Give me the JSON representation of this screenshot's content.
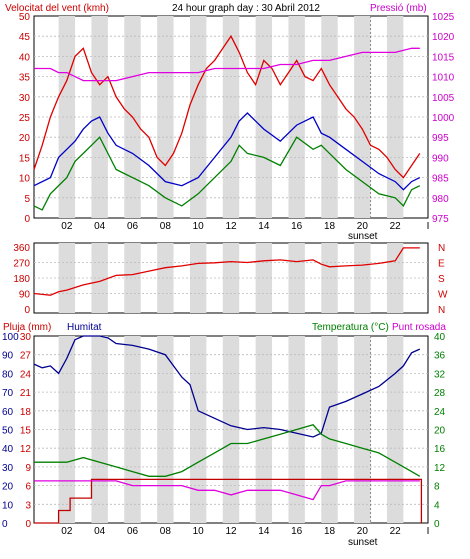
{
  "header": {
    "wind_label": "Velocitat del vent (kmh)",
    "title": "24 hour graph day : 30 Abril 2012",
    "pressure_label": "Pressió (mb)"
  },
  "colors": {
    "wind_gust": "#e00000",
    "wind_avg": "#0000c8",
    "wind_low": "#008000",
    "pressure": "#e000e0",
    "direction": "#e00000",
    "humidity": "#000090",
    "rain": "#c00000",
    "temperature": "#008000",
    "dewpoint": "#e000e0",
    "band": "#dcdcdc",
    "axis_left": "#cc0000",
    "axis_right_top": "#cc00cc",
    "axis_right_bottom": "#008000"
  },
  "x_ticks": [
    "02",
    "04",
    "06",
    "08",
    "10",
    "12",
    "14",
    "16",
    "18",
    "20",
    "22"
  ],
  "sunset_label": "sunset",
  "end_tick": "I",
  "chart_data": [
    {
      "type": "line",
      "id": "wind_pressure",
      "x_unit": "hour",
      "ylim_left": [
        0,
        50
      ],
      "yticks_left": [
        0,
        5,
        10,
        15,
        20,
        25,
        30,
        35,
        40,
        45,
        50
      ],
      "ylim_right": [
        975,
        1025
      ],
      "yticks_right": [
        975,
        980,
        985,
        990,
        995,
        1000,
        1005,
        1010,
        1015,
        1020,
        1025
      ],
      "grid": true,
      "sunset_hour": 20.5,
      "series": [
        {
          "axis": "left",
          "color_key": "wind_gust",
          "x": [
            0,
            0.5,
            1,
            1.5,
            2,
            2.5,
            3,
            3.5,
            4,
            4.5,
            5,
            5.5,
            6,
            6.5,
            7,
            7.5,
            8,
            8.5,
            9,
            9.5,
            10,
            10.5,
            11,
            11.5,
            12,
            12.5,
            13,
            13.5,
            14,
            14.5,
            15,
            15.5,
            16,
            16.5,
            17,
            17.5,
            18,
            18.5,
            19,
            19.5,
            20,
            20.5,
            21,
            21.5,
            22,
            22.5,
            23,
            23.5
          ],
          "y": [
            12,
            18,
            25,
            30,
            34,
            40,
            42,
            36,
            33,
            35,
            30,
            27,
            25,
            22,
            20,
            15,
            13,
            16,
            21,
            28,
            33,
            37,
            39,
            42,
            45,
            41,
            36,
            33,
            39,
            37,
            33,
            36,
            39,
            35,
            34,
            37,
            33,
            30,
            27,
            25,
            22,
            18,
            17,
            15,
            12,
            10,
            13,
            16
          ]
        },
        {
          "axis": "left",
          "color_key": "wind_avg",
          "x": [
            0,
            1,
            1.5,
            2,
            2.5,
            3,
            3.5,
            4,
            4.5,
            5,
            6,
            7,
            8,
            9,
            10,
            11,
            12,
            12.5,
            13,
            14,
            15,
            16,
            17,
            17.5,
            18,
            19,
            20,
            21,
            22,
            22.5,
            23,
            23.5
          ],
          "y": [
            8,
            10,
            15,
            17,
            19,
            22,
            24,
            25,
            21,
            18,
            16,
            13,
            9,
            8,
            10,
            15,
            20,
            24,
            26,
            22,
            19,
            23,
            25,
            21,
            20,
            17,
            14,
            11,
            9,
            7,
            9,
            10
          ]
        },
        {
          "axis": "left",
          "color_key": "wind_low",
          "x": [
            0,
            0.5,
            1,
            2,
            2.5,
            3,
            3.5,
            4,
            5,
            6,
            7,
            8,
            8.5,
            9,
            10,
            11,
            12,
            12.5,
            13,
            14,
            15,
            16,
            17,
            17.5,
            18,
            19,
            20,
            21,
            22,
            22.5,
            23,
            23.5
          ],
          "y": [
            3,
            2,
            6,
            10,
            14,
            16,
            18,
            20,
            12,
            10,
            8,
            5,
            4,
            3,
            6,
            10,
            14,
            18,
            16,
            15,
            13,
            20,
            17,
            18,
            16,
            12,
            9,
            6,
            5,
            3,
            7,
            8
          ]
        },
        {
          "axis": "right",
          "color_key": "pressure",
          "x": [
            0,
            1,
            1.5,
            2,
            3,
            4,
            5,
            6,
            7,
            8,
            9,
            10,
            11,
            12,
            13,
            14,
            15,
            16,
            17,
            18,
            19,
            20,
            21,
            22,
            23,
            23.5
          ],
          "y": [
            1012,
            1012,
            1011,
            1011,
            1009,
            1009,
            1009,
            1010,
            1011,
            1011,
            1011,
            1011,
            1012,
            1012,
            1012,
            1012,
            1013,
            1013,
            1014,
            1014,
            1015,
            1016,
            1016,
            1016,
            1017,
            1017
          ]
        }
      ]
    },
    {
      "type": "line",
      "id": "wind_direction",
      "x_unit": "hour",
      "ylim": [
        0,
        360
      ],
      "yticks": [
        0,
        90,
        180,
        270,
        360
      ],
      "right_labels": [
        "N",
        "W",
        "S",
        "E",
        "N"
      ],
      "grid": true,
      "series": [
        {
          "color_key": "direction",
          "x": [
            0,
            0.5,
            1,
            1.5,
            2,
            3,
            4,
            5,
            6,
            7,
            8,
            9,
            10,
            11,
            12,
            13,
            14,
            15,
            16,
            17,
            17.5,
            18,
            19,
            20,
            21,
            22,
            22.5,
            23,
            23.5
          ],
          "y": [
            90,
            85,
            80,
            100,
            110,
            140,
            160,
            195,
            200,
            220,
            240,
            250,
            265,
            268,
            275,
            270,
            280,
            285,
            275,
            285,
            260,
            245,
            250,
            255,
            265,
            280,
            355,
            355,
            355
          ]
        }
      ]
    },
    {
      "type": "line",
      "id": "hum_rain_temp",
      "x_unit": "hour",
      "left_axis_pluja": {
        "label": "Pluja (mm)",
        "ylim": [
          0,
          30
        ],
        "yticks": [
          0,
          3,
          6,
          9,
          12,
          15,
          18,
          21,
          24,
          27,
          30
        ]
      },
      "left_axis_humitat": {
        "label": "Humitat",
        "ylim": [
          0,
          100
        ],
        "yticks": [
          0,
          10,
          20,
          30,
          40,
          50,
          60,
          70,
          80,
          90,
          100
        ]
      },
      "right_axis": {
        "label": "Temperatura (°C)",
        "ylim": [
          0,
          40
        ],
        "yticks": [
          0,
          4,
          8,
          12,
          16,
          20,
          24,
          28,
          32,
          36,
          40
        ]
      },
      "dewpoint_label": "Punt rosada",
      "sunset_hour": 20.5,
      "grid": true,
      "series": [
        {
          "name": "Humitat",
          "axis": "humitat",
          "color_key": "humidity",
          "x": [
            0,
            0.5,
            1,
            1.5,
            2,
            2.5,
            3,
            4,
            4.5,
            5,
            6,
            7,
            8,
            9,
            9.5,
            10,
            11,
            12,
            13,
            14,
            15,
            16,
            17,
            17.5,
            18,
            19,
            20,
            21,
            22,
            22.5,
            23,
            23.5
          ],
          "y": [
            85,
            83,
            84,
            80,
            88,
            98,
            100,
            100,
            99,
            96,
            95,
            93,
            90,
            78,
            74,
            60,
            56,
            52,
            50,
            51,
            50,
            48,
            46,
            48,
            62,
            65,
            69,
            73,
            80,
            84,
            91,
            93
          ]
        },
        {
          "name": "Pluja (mm)",
          "axis": "pluja",
          "color_key": "rain",
          "x": [
            0,
            1,
            1.5,
            2,
            2.2,
            3,
            3.5,
            5,
            10,
            15,
            20,
            22,
            23,
            23.5,
            23.6
          ],
          "y": [
            0,
            0,
            2,
            2,
            4,
            4,
            7,
            7,
            7,
            7,
            7,
            7,
            7,
            7,
            0
          ]
        },
        {
          "name": "Temperatura (°C)",
          "axis": "temp",
          "color_key": "temperature",
          "x": [
            0,
            1,
            2,
            3,
            4,
            5,
            6,
            7,
            8,
            9,
            10,
            11,
            12,
            13,
            14,
            15,
            16,
            17,
            17.5,
            18,
            19,
            20,
            21,
            22,
            23,
            23.5
          ],
          "y": [
            13,
            13,
            13,
            14,
            13,
            12,
            11,
            10,
            10,
            11,
            13,
            15,
            17,
            17,
            18,
            19,
            20,
            21,
            19,
            18,
            17,
            16,
            15,
            13,
            11,
            10
          ]
        },
        {
          "name": "Punt rosada",
          "axis": "temp",
          "color_key": "dewpoint",
          "x": [
            0,
            1,
            2,
            3,
            4,
            5,
            6,
            7,
            8,
            9,
            10,
            11,
            12,
            13,
            14,
            15,
            16,
            17,
            17.5,
            18,
            19,
            20,
            21,
            22,
            23,
            23.5
          ],
          "y": [
            9,
            9,
            9,
            9,
            9,
            9,
            8,
            8,
            8,
            8,
            7,
            7,
            6,
            7,
            7,
            7,
            6,
            5,
            8,
            8,
            9,
            9,
            9,
            9,
            9,
            9
          ]
        }
      ]
    }
  ]
}
